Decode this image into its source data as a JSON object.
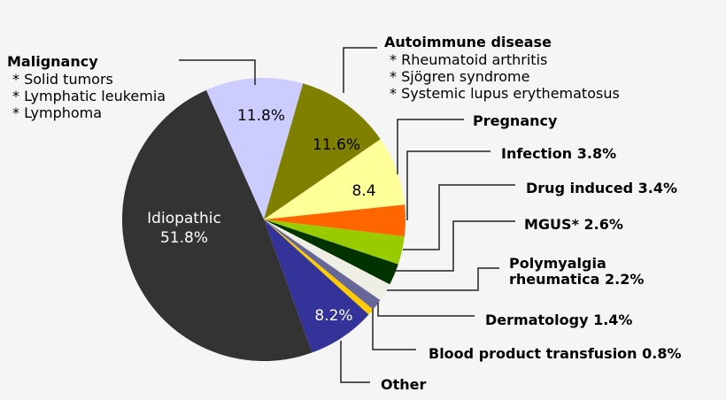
{
  "chart_data": {
    "type": "pie",
    "title": "",
    "slices": [
      {
        "name": "Malignancy",
        "value": 11.8,
        "color": "#ccccff",
        "inside_label": "11.8%",
        "inside_color": "#000000",
        "details": [
          "Solid tumors",
          "Lymphatic leukemia",
          "Lymphoma"
        ]
      },
      {
        "name": "Autoimmune disease",
        "value": 11.6,
        "color": "#808000",
        "inside_label": "11.6%",
        "inside_color": "#000000",
        "details": [
          "Rheumatoid arthritis",
          "Sjögren syndrome",
          "Systemic lupus erythematosus"
        ]
      },
      {
        "name": "Pregnancy",
        "value": 8.4,
        "color": "#ffff99",
        "inside_label": "8.4",
        "inside_color": "#000000"
      },
      {
        "name": "Infection",
        "value": 3.8,
        "color": "#ff6600",
        "label": "Infection 3.8%"
      },
      {
        "name": "Drug induced",
        "value": 3.4,
        "color": "#99cc00",
        "label": "Drug induced 3.4%"
      },
      {
        "name": "MGUS*",
        "value": 2.6,
        "color": "#003300",
        "label": "MGUS* 2.6%"
      },
      {
        "name": "Polymyalgia rheumatica",
        "value": 2.2,
        "color": "#eeeee4",
        "label": "Polymyalgia rheumatica 2.2%"
      },
      {
        "name": "Dermatology",
        "value": 1.4,
        "color": "#666699",
        "label": "Dermatology 1.4%"
      },
      {
        "name": "Blood product transfusion",
        "value": 0.8,
        "color": "#ffcc00",
        "label": "Blood product transfusion 0.8%"
      },
      {
        "name": "Other",
        "value": 8.2,
        "color": "#333399",
        "inside_label": "8.2%",
        "inside_color": "#ffffff"
      },
      {
        "name": "Idiopathic",
        "value": 51.8,
        "color": "#333333",
        "inside_label": "Idiopathic\n51.8%",
        "inside_color": "#ffffff"
      }
    ]
  },
  "labels": {
    "malignancy": {
      "title": "Malignancy",
      "items": [
        "* Solid tumors",
        "* Lymphatic leukemia",
        "* Lymphoma"
      ]
    },
    "autoimmune": {
      "title": "Autoimmune disease",
      "items": [
        "* Rheumatoid arthritis",
        "* Sjögren syndrome",
        "* Systemic lupus erythematosus"
      ]
    },
    "pregnancy": "Pregnancy",
    "infection": "Infection 3.8%",
    "drug": "Drug induced 3.4%",
    "mgus": "MGUS* 2.6%",
    "polymyalgia_1": "Polymyalgia",
    "polymyalgia_2": "rheumatica 2.2%",
    "dermatology": "Dermatology 1.4%",
    "blood": "Blood product transfusion 0.8%",
    "other": "Other"
  },
  "inside": {
    "malignancy": "11.8%",
    "autoimmune": "11.6%",
    "pregnancy": "8.4",
    "other": "8.2%",
    "idiopathic_1": "Idiopathic",
    "idiopathic_2": "51.8%"
  }
}
